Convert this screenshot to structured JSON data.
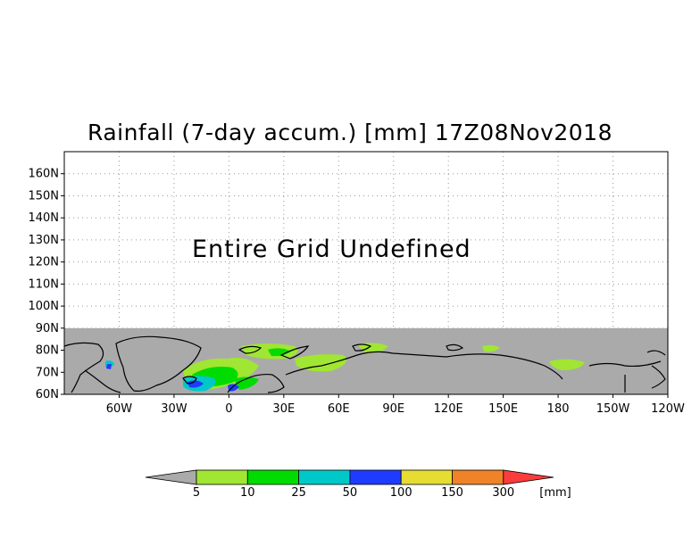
{
  "title": "Rainfall (7-day accum.) [mm] 17Z08Nov2018",
  "overlay_text": "Entire Grid Undefined",
  "map": {
    "lat_labels": [
      "160N",
      "150N",
      "140N",
      "130N",
      "120N",
      "110N",
      "100N",
      "90N",
      "80N",
      "70N",
      "60N"
    ],
    "lon_labels": [
      "60W",
      "30W",
      "0",
      "30E",
      "60E",
      "90E",
      "120E",
      "150E",
      "180",
      "150W",
      "120W"
    ],
    "lat_range": [
      60,
      170
    ],
    "lon_range": [
      -90,
      240
    ],
    "data_lat_max": 90,
    "colors": {
      "undefined": "#aaaaaa",
      "coast": "#000000",
      "grid": "#999999"
    }
  },
  "colorbar": {
    "unit": "[mm]",
    "thresholds": [
      "5",
      "10",
      "25",
      "50",
      "100",
      "150",
      "300"
    ],
    "colors": [
      "#aaaaaa",
      "#a0e632",
      "#00dc00",
      "#00c8c8",
      "#1e3cff",
      "#e6dc32",
      "#f08228",
      "#fa3c3c"
    ]
  }
}
